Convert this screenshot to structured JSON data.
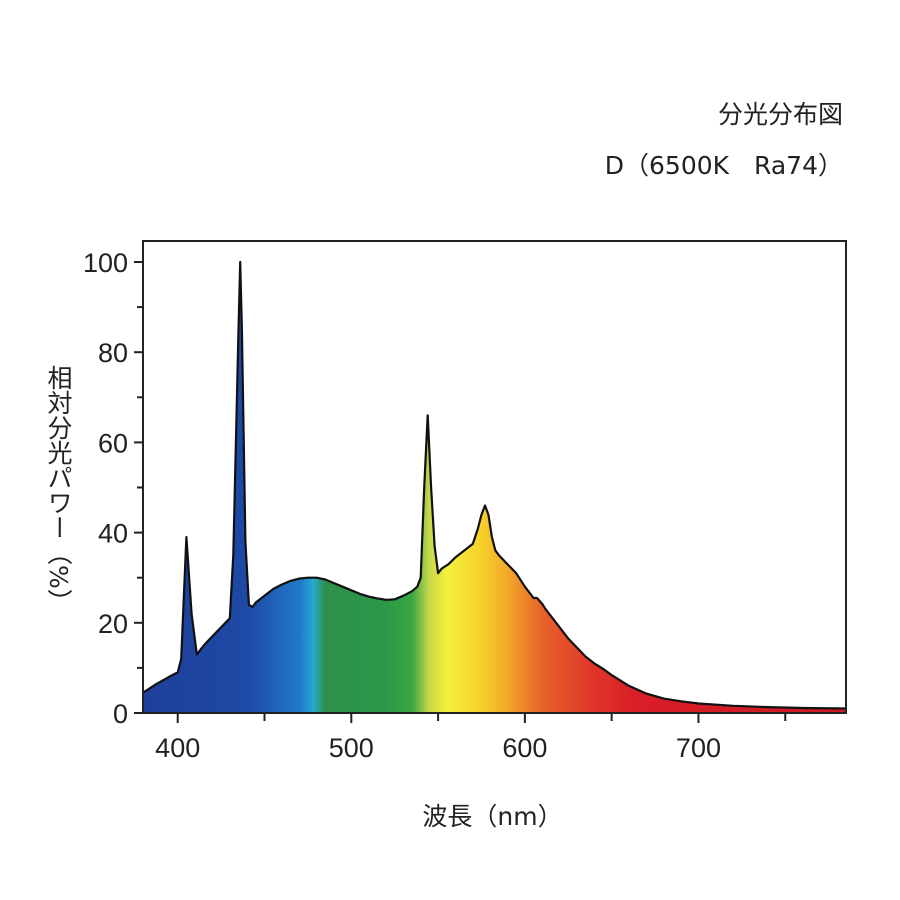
{
  "chart_data": {
    "type": "area",
    "title": "分光分布図",
    "subtitle": "D（6500K　Ra74）",
    "xlabel": "波長（nm）",
    "ylabel": "相対分光パワー（%）",
    "xlim": [
      380,
      785
    ],
    "ylim": [
      0,
      105
    ],
    "x_ticks": [
      400,
      500,
      600,
      700
    ],
    "y_ticks": [
      0,
      20,
      40,
      60,
      80,
      100
    ],
    "x_minor_ticks": [
      450,
      550,
      650,
      750
    ],
    "y_minor_ticks": [
      10,
      30,
      50,
      70,
      90
    ],
    "grid": false,
    "series": [
      {
        "x": [
          380,
          388,
          395,
          400,
          402,
          405,
          408,
          411,
          415,
          420,
          425,
          430,
          432,
          435,
          436,
          437,
          439,
          441,
          443,
          445,
          450,
          455,
          460,
          465,
          470,
          475,
          480,
          485,
          490,
          495,
          500,
          505,
          510,
          515,
          520,
          525,
          530,
          535,
          538,
          540,
          542,
          544,
          546,
          548,
          550,
          552,
          554,
          556,
          560,
          565,
          570,
          573,
          575,
          577,
          579,
          581,
          583,
          585,
          590,
          595,
          600,
          605,
          607,
          610,
          612,
          615,
          620,
          625,
          630,
          635,
          640,
          645,
          650,
          660,
          670,
          680,
          690,
          700,
          720,
          740,
          760,
          785
        ],
        "y": [
          4.5,
          6.5,
          8,
          9,
          12,
          39,
          22,
          13,
          15,
          17,
          19,
          21,
          35,
          85,
          100,
          85,
          38,
          24,
          23.5,
          24.5,
          26,
          27.5,
          28.5,
          29.3,
          29.8,
          30,
          30,
          29.6,
          28.8,
          28,
          27.2,
          26.4,
          25.8,
          25.4,
          25.1,
          25.2,
          26,
          27,
          28,
          30,
          50,
          66,
          50,
          37,
          31,
          32,
          32.5,
          33,
          34.5,
          36,
          37.5,
          41,
          44,
          46,
          44,
          39,
          36,
          35,
          33,
          31,
          28,
          25.5,
          25.5,
          24.2,
          23,
          21.5,
          19,
          16.5,
          14.5,
          12.5,
          11,
          9.8,
          8.4,
          6,
          4.3,
          3.2,
          2.6,
          2.1,
          1.6,
          1.3,
          1.1,
          1.0
        ]
      }
    ]
  },
  "colors": {
    "spectrum_stops": [
      "#1e3f9a",
      "#1d4aa6",
      "#2178c8",
      "#26a8d0",
      "#2e8f4a",
      "#2a9948",
      "#3aa743",
      "#c8d84a",
      "#f2f03b",
      "#f7d02a",
      "#f2a82a",
      "#e8632a",
      "#e0342a",
      "#d81e27",
      "#cc1a25"
    ],
    "outline": "#111111",
    "frame": "#222222"
  }
}
